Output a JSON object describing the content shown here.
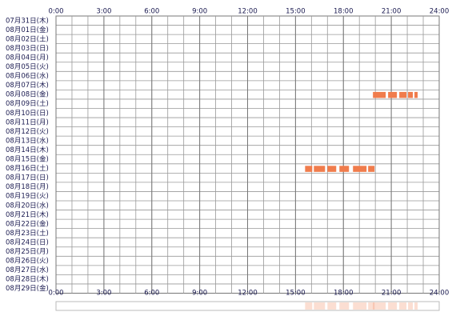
{
  "chart_data": {
    "type": "timeline",
    "categories": [
      "07月31日(木)",
      "08月01日(金)",
      "08月02日(土)",
      "08月03日(日)",
      "08月04日(月)",
      "08月05日(火)",
      "08月06日(水)",
      "08月07日(木)",
      "08月08日(金)",
      "08月09日(土)",
      "08月10日(日)",
      "08月11日(月)",
      "08月12日(火)",
      "08月13日(水)",
      "08月14日(木)",
      "08月15日(金)",
      "08月16日(土)",
      "08月17日(日)",
      "08月18日(月)",
      "08月19日(火)",
      "08月20日(水)",
      "08月21日(木)",
      "08月22日(金)",
      "08月23日(土)",
      "08月24日(日)",
      "08月25日(月)",
      "08月26日(火)",
      "08月27日(水)",
      "08月28日(木)",
      "08月29日(金)"
    ],
    "segments": [
      [],
      [],
      [],
      [],
      [],
      [],
      [],
      [],
      [
        [
          19.85,
          20.65
        ],
        [
          20.8,
          21.35
        ],
        [
          21.5,
          21.95
        ],
        [
          22.05,
          22.35
        ],
        [
          22.45,
          22.65
        ]
      ],
      [],
      [],
      [],
      [],
      [],
      [],
      [],
      [
        [
          15.6,
          16.05
        ],
        [
          16.15,
          16.85
        ],
        [
          17.0,
          17.55
        ],
        [
          17.75,
          18.35
        ],
        [
          18.6,
          19.45
        ],
        [
          19.55,
          19.95
        ]
      ],
      [],
      [],
      [],
      [],
      [],
      [],
      [],
      [],
      [],
      [],
      [],
      [],
      []
    ],
    "color": "#f07c4c",
    "xlim": [
      0,
      24
    ],
    "xticks": [
      {
        "value": 0,
        "label": "0:00"
      },
      {
        "value": 3,
        "label": "3:00"
      },
      {
        "value": 6,
        "label": "6:00"
      },
      {
        "value": 9,
        "label": "9:00"
      },
      {
        "value": 12,
        "label": "12:00"
      },
      {
        "value": 15,
        "label": "15:00"
      },
      {
        "value": 18,
        "label": "18:00"
      },
      {
        "value": 21,
        "label": "21:00"
      },
      {
        "value": 24,
        "label": "24:00"
      }
    ],
    "grid": true
  }
}
